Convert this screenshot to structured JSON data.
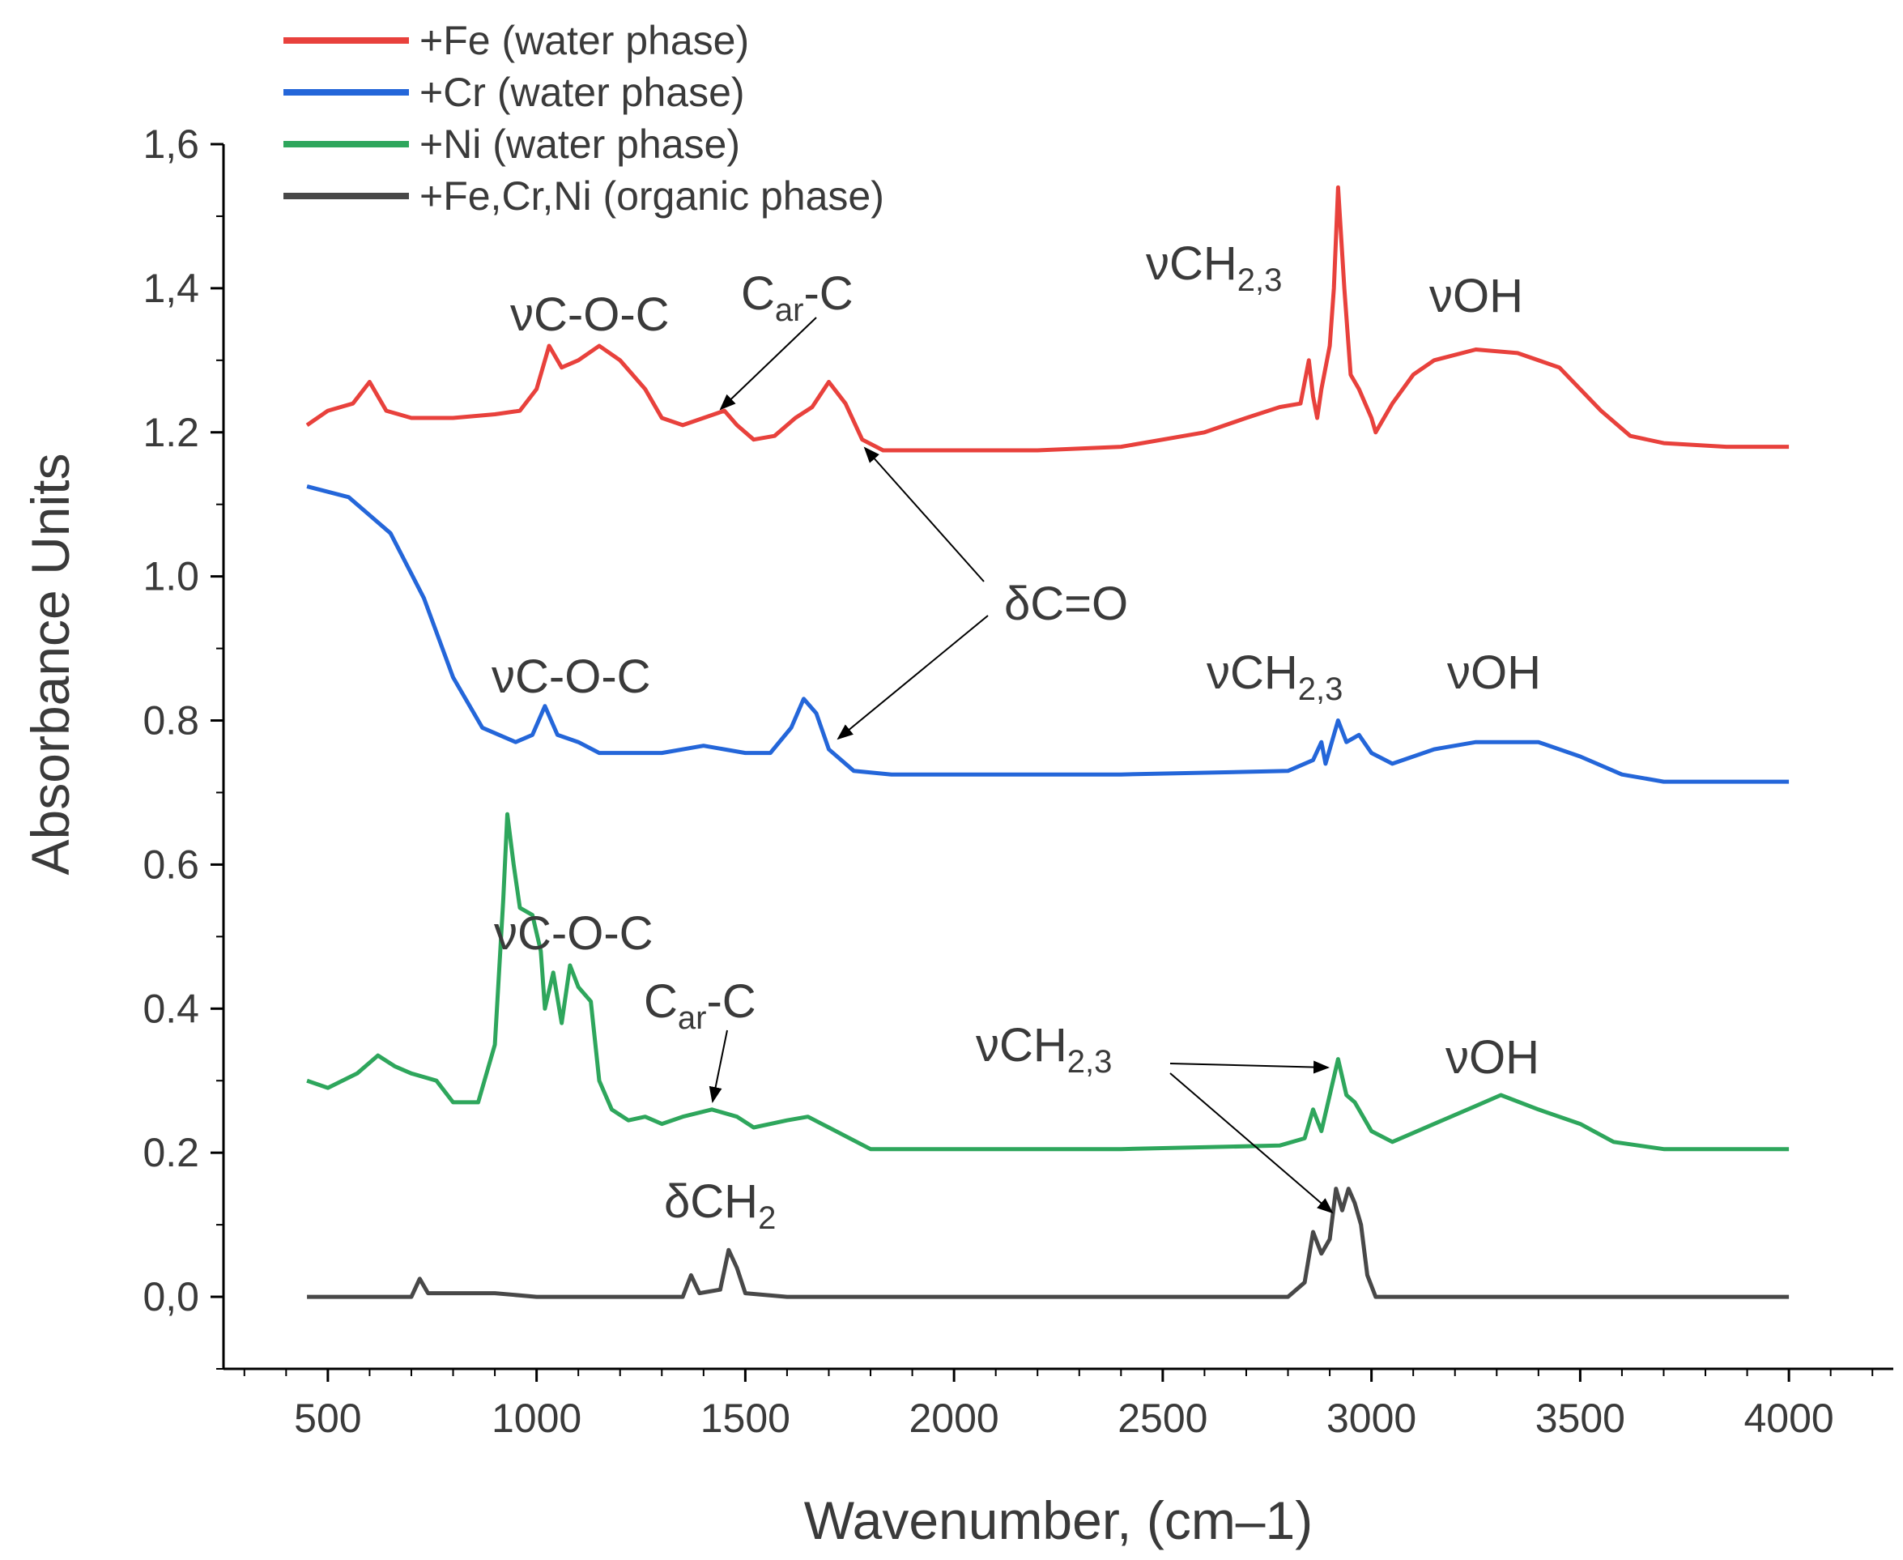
{
  "chart_data": {
    "type": "line",
    "xlabel": "Wavenumber, (cm–1)",
    "ylabel": "Absorbance Units",
    "xlim": [
      250,
      4250
    ],
    "ylim": [
      -0.1,
      1.6
    ],
    "x_ticks": [
      500,
      1000,
      1500,
      2000,
      2500,
      3000,
      3500,
      4000
    ],
    "x_tick_labels": [
      "500",
      "1000",
      "1500",
      "2000",
      "2500",
      "3000",
      "3500",
      "4000"
    ],
    "y_ticks": [
      0.0,
      0.2,
      0.4,
      0.6,
      0.8,
      1.0,
      1.2,
      1.4,
      1.6
    ],
    "y_tick_labels": [
      "0,0",
      "0.2",
      "0.4",
      "0.6",
      "0.8",
      "1.0",
      "1.2",
      "1,4",
      "1,6"
    ],
    "legend_position": "top-left",
    "series": [
      {
        "name": "+Fe (water phase)",
        "color": "#e8413c",
        "points": [
          [
            450,
            1.21
          ],
          [
            500,
            1.23
          ],
          [
            560,
            1.24
          ],
          [
            600,
            1.27
          ],
          [
            640,
            1.23
          ],
          [
            700,
            1.22
          ],
          [
            800,
            1.22
          ],
          [
            900,
            1.225
          ],
          [
            960,
            1.23
          ],
          [
            1000,
            1.26
          ],
          [
            1030,
            1.32
          ],
          [
            1060,
            1.29
          ],
          [
            1100,
            1.3
          ],
          [
            1150,
            1.32
          ],
          [
            1200,
            1.3
          ],
          [
            1260,
            1.26
          ],
          [
            1300,
            1.22
          ],
          [
            1350,
            1.21
          ],
          [
            1400,
            1.22
          ],
          [
            1450,
            1.23
          ],
          [
            1480,
            1.21
          ],
          [
            1520,
            1.19
          ],
          [
            1570,
            1.195
          ],
          [
            1620,
            1.22
          ],
          [
            1660,
            1.235
          ],
          [
            1700,
            1.27
          ],
          [
            1740,
            1.24
          ],
          [
            1780,
            1.19
          ],
          [
            1830,
            1.175
          ],
          [
            2000,
            1.175
          ],
          [
            2200,
            1.175
          ],
          [
            2400,
            1.18
          ],
          [
            2600,
            1.2
          ],
          [
            2700,
            1.22
          ],
          [
            2780,
            1.235
          ],
          [
            2830,
            1.24
          ],
          [
            2850,
            1.3
          ],
          [
            2860,
            1.25
          ],
          [
            2870,
            1.22
          ],
          [
            2880,
            1.26
          ],
          [
            2900,
            1.32
          ],
          [
            2910,
            1.4
          ],
          [
            2920,
            1.54
          ],
          [
            2935,
            1.4
          ],
          [
            2950,
            1.28
          ],
          [
            2970,
            1.26
          ],
          [
            3000,
            1.22
          ],
          [
            3010,
            1.2
          ],
          [
            3050,
            1.24
          ],
          [
            3100,
            1.28
          ],
          [
            3150,
            1.3
          ],
          [
            3250,
            1.315
          ],
          [
            3350,
            1.31
          ],
          [
            3450,
            1.29
          ],
          [
            3550,
            1.23
          ],
          [
            3620,
            1.195
          ],
          [
            3700,
            1.185
          ],
          [
            3850,
            1.18
          ],
          [
            4000,
            1.18
          ]
        ]
      },
      {
        "name": "+Cr (water phase)",
        "color": "#2466d9",
        "points": [
          [
            450,
            1.125
          ],
          [
            550,
            1.11
          ],
          [
            650,
            1.06
          ],
          [
            730,
            0.97
          ],
          [
            800,
            0.86
          ],
          [
            870,
            0.79
          ],
          [
            950,
            0.77
          ],
          [
            990,
            0.78
          ],
          [
            1020,
            0.82
          ],
          [
            1050,
            0.78
          ],
          [
            1100,
            0.77
          ],
          [
            1150,
            0.755
          ],
          [
            1300,
            0.755
          ],
          [
            1400,
            0.765
          ],
          [
            1500,
            0.755
          ],
          [
            1560,
            0.755
          ],
          [
            1610,
            0.79
          ],
          [
            1640,
            0.83
          ],
          [
            1670,
            0.81
          ],
          [
            1700,
            0.76
          ],
          [
            1760,
            0.73
          ],
          [
            1850,
            0.725
          ],
          [
            2000,
            0.725
          ],
          [
            2400,
            0.725
          ],
          [
            2800,
            0.73
          ],
          [
            2860,
            0.745
          ],
          [
            2880,
            0.77
          ],
          [
            2890,
            0.74
          ],
          [
            2910,
            0.78
          ],
          [
            2920,
            0.8
          ],
          [
            2940,
            0.77
          ],
          [
            2970,
            0.78
          ],
          [
            3000,
            0.755
          ],
          [
            3050,
            0.74
          ],
          [
            3150,
            0.76
          ],
          [
            3250,
            0.77
          ],
          [
            3400,
            0.77
          ],
          [
            3500,
            0.75
          ],
          [
            3600,
            0.725
          ],
          [
            3700,
            0.715
          ],
          [
            4000,
            0.715
          ]
        ]
      },
      {
        "name": "+Ni (water phase)",
        "color": "#2ea65c",
        "points": [
          [
            450,
            0.3
          ],
          [
            500,
            0.29
          ],
          [
            570,
            0.31
          ],
          [
            620,
            0.335
          ],
          [
            660,
            0.32
          ],
          [
            700,
            0.31
          ],
          [
            760,
            0.3
          ],
          [
            800,
            0.27
          ],
          [
            860,
            0.27
          ],
          [
            900,
            0.35
          ],
          [
            920,
            0.55
          ],
          [
            930,
            0.67
          ],
          [
            945,
            0.6
          ],
          [
            960,
            0.54
          ],
          [
            990,
            0.53
          ],
          [
            1010,
            0.48
          ],
          [
            1020,
            0.4
          ],
          [
            1040,
            0.45
          ],
          [
            1060,
            0.38
          ],
          [
            1080,
            0.46
          ],
          [
            1100,
            0.43
          ],
          [
            1130,
            0.41
          ],
          [
            1150,
            0.3
          ],
          [
            1180,
            0.26
          ],
          [
            1220,
            0.245
          ],
          [
            1260,
            0.25
          ],
          [
            1300,
            0.24
          ],
          [
            1350,
            0.25
          ],
          [
            1420,
            0.26
          ],
          [
            1480,
            0.25
          ],
          [
            1520,
            0.235
          ],
          [
            1600,
            0.245
          ],
          [
            1650,
            0.25
          ],
          [
            1700,
            0.235
          ],
          [
            1800,
            0.205
          ],
          [
            2000,
            0.205
          ],
          [
            2400,
            0.205
          ],
          [
            2780,
            0.21
          ],
          [
            2840,
            0.22
          ],
          [
            2860,
            0.26
          ],
          [
            2880,
            0.23
          ],
          [
            2900,
            0.28
          ],
          [
            2920,
            0.33
          ],
          [
            2940,
            0.28
          ],
          [
            2960,
            0.27
          ],
          [
            3000,
            0.23
          ],
          [
            3050,
            0.215
          ],
          [
            3150,
            0.24
          ],
          [
            3250,
            0.265
          ],
          [
            3310,
            0.28
          ],
          [
            3400,
            0.26
          ],
          [
            3500,
            0.24
          ],
          [
            3580,
            0.215
          ],
          [
            3700,
            0.205
          ],
          [
            4000,
            0.205
          ]
        ]
      },
      {
        "name": "+Fe,Cr,Ni (organic phase)",
        "color": "#484848",
        "points": [
          [
            450,
            0.0
          ],
          [
            700,
            0.0
          ],
          [
            720,
            0.025
          ],
          [
            740,
            0.005
          ],
          [
            900,
            0.005
          ],
          [
            1000,
            0.0
          ],
          [
            1350,
            0.0
          ],
          [
            1370,
            0.03
          ],
          [
            1390,
            0.005
          ],
          [
            1440,
            0.01
          ],
          [
            1460,
            0.065
          ],
          [
            1480,
            0.04
          ],
          [
            1500,
            0.005
          ],
          [
            1600,
            0.0
          ],
          [
            2000,
            0.0
          ],
          [
            2400,
            0.0
          ],
          [
            2800,
            0.0
          ],
          [
            2840,
            0.02
          ],
          [
            2860,
            0.09
          ],
          [
            2880,
            0.06
          ],
          [
            2900,
            0.08
          ],
          [
            2915,
            0.15
          ],
          [
            2930,
            0.12
          ],
          [
            2945,
            0.15
          ],
          [
            2960,
            0.13
          ],
          [
            2975,
            0.1
          ],
          [
            2990,
            0.03
          ],
          [
            3010,
            0.0
          ],
          [
            3500,
            0.0
          ],
          [
            4000,
            0.0
          ]
        ]
      }
    ],
    "annotations": [
      {
        "id": "fe-coc",
        "text": "νC-O-C",
        "series": "+Fe (water phase)"
      },
      {
        "id": "fe-carc",
        "text": "C",
        "sub": "ar",
        "tail": "-C",
        "series": "+Fe (water phase)"
      },
      {
        "id": "fe-ch",
        "text": "νCH",
        "sub": "2,3",
        "series": "+Fe (water phase)"
      },
      {
        "id": "fe-oh",
        "text": "νOH",
        "series": "+Fe (water phase)"
      },
      {
        "id": "dco",
        "text": "δC=O",
        "series": "+Fe (water phase), +Cr (water phase)"
      },
      {
        "id": "cr-coc",
        "text": "νC-O-C",
        "series": "+Cr (water phase)"
      },
      {
        "id": "cr-ch",
        "text": "νCH",
        "sub": "2,3",
        "series": "+Cr (water phase)"
      },
      {
        "id": "cr-oh",
        "text": "νOH",
        "series": "+Cr (water phase)"
      },
      {
        "id": "ni-coc",
        "text": "νC-O-C",
        "series": "+Ni (water phase)"
      },
      {
        "id": "ni-carc",
        "text": "C",
        "sub": "ar",
        "tail": "-C",
        "series": "+Ni (water phase)"
      },
      {
        "id": "ni-ch",
        "text": "νCH",
        "sub": "2,3",
        "series": "+Ni (water phase), +Fe,Cr,Ni (organic phase)"
      },
      {
        "id": "ni-oh",
        "text": "νOH",
        "series": "+Ni (water phase)"
      },
      {
        "id": "org-dch",
        "text": "δCH",
        "sub": "2",
        "series": "+Fe,Cr,Ni (organic phase)"
      }
    ]
  }
}
